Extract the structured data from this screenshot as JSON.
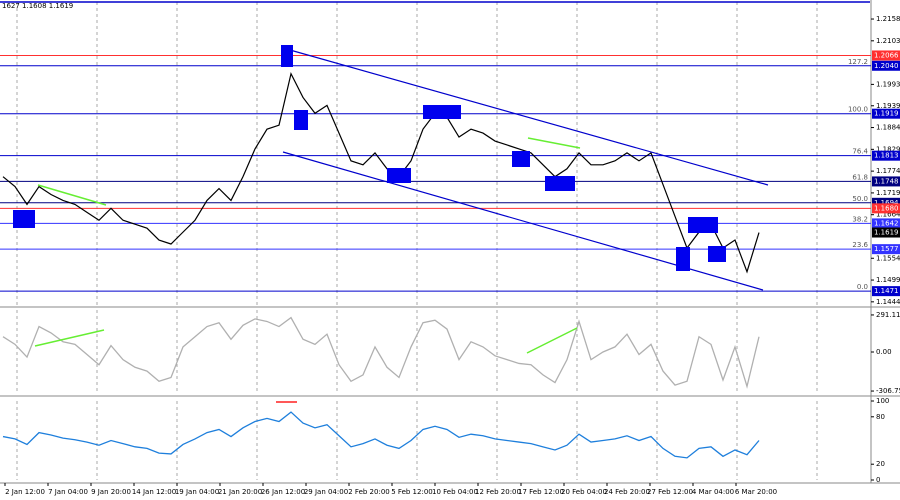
{
  "chart_data": [
    {
      "type": "line",
      "header": "1627 1.1608 1.1619",
      "color": "#000000",
      "values": [
        1.176,
        1.1735,
        1.169,
        1.1735,
        1.1715,
        1.17,
        1.169,
        1.167,
        1.165,
        1.168,
        1.165,
        1.164,
        1.163,
        1.16,
        1.159,
        1.162,
        1.165,
        1.17,
        1.173,
        1.17,
        1.176,
        1.183,
        1.188,
        1.189,
        1.202,
        1.196,
        1.192,
        1.194,
        1.187,
        1.18,
        1.179,
        1.182,
        1.178,
        1.176,
        1.18,
        1.188,
        1.192,
        1.191,
        1.186,
        1.188,
        1.187,
        1.185,
        1.184,
        1.183,
        1.182,
        1.179,
        1.176,
        1.178,
        1.182,
        1.179,
        1.179,
        1.18,
        1.182,
        1.18,
        1.182,
        1.174,
        1.166,
        1.158,
        1.162,
        1.164,
        1.158,
        1.16,
        1.152,
        1.1619
      ],
      "ylim": [
        1.1436,
        1.2201
      ],
      "yticks": [
        1.2158,
        1.2103,
        1.1993,
        1.1939,
        1.1884,
        1.1829,
        1.1774,
        1.1719,
        1.1664,
        1.1554,
        1.1499,
        1.1444
      ],
      "levels": [
        {
          "value": 1.2066,
          "color": "#ff3030"
        },
        {
          "value": 1.204,
          "label": "1.2040",
          "fib": "127.2",
          "color": "#0000cc"
        },
        {
          "value": 1.1919,
          "fib": "100.0",
          "color": "#0000cc"
        },
        {
          "value": 1.1813,
          "fib": "76.4",
          "color": "#0000cc"
        },
        {
          "value": 1.1748,
          "fib": "61.8",
          "color": "#000080"
        },
        {
          "value": 1.1694,
          "fib": "50.0",
          "color": "#000080"
        },
        {
          "value": 1.168,
          "label": "1.1680",
          "color": "#ff3030"
        },
        {
          "value": 1.1642,
          "fib": "38.2",
          "color": "#3333ff"
        },
        {
          "value": 1.1619,
          "color": "#000000"
        },
        {
          "value": 1.1577,
          "fib": "23.6",
          "color": "#3333ff"
        },
        {
          "value": 1.1471,
          "fib": "0.0",
          "color": "#0000cc"
        }
      ]
    },
    {
      "type": "line",
      "color": "#b0b0b0",
      "values": [
        120,
        60,
        -40,
        200,
        150,
        80,
        60,
        -20,
        -100,
        50,
        -60,
        -120,
        -150,
        -230,
        -200,
        40,
        120,
        200,
        230,
        100,
        210,
        260,
        240,
        200,
        270,
        100,
        60,
        140,
        -100,
        -230,
        -180,
        40,
        -120,
        -200,
        40,
        230,
        250,
        180,
        -60,
        80,
        40,
        -30,
        -60,
        -90,
        -100,
        -180,
        -240,
        -60,
        240,
        -60,
        0,
        40,
        140,
        -20,
        60,
        -150,
        -260,
        -230,
        120,
        60,
        -220,
        40,
        -270,
        120
      ],
      "ylim": [
        -330,
        330
      ],
      "yticks": [
        {
          "value": 291.1149,
          "label": "291.1149"
        },
        {
          "value": 0,
          "label": "0.00"
        },
        -306.75
      ]
    },
    {
      "type": "line",
      "color": "#1e7fdc",
      "values": [
        55,
        52,
        45,
        60,
        57,
        53,
        51,
        48,
        44,
        50,
        46,
        42,
        40,
        34,
        33,
        45,
        52,
        60,
        64,
        55,
        66,
        74,
        78,
        74,
        86,
        72,
        66,
        70,
        56,
        42,
        46,
        52,
        44,
        40,
        50,
        64,
        68,
        64,
        54,
        58,
        56,
        52,
        50,
        48,
        46,
        42,
        38,
        44,
        58,
        48,
        50,
        52,
        56,
        50,
        55,
        40,
        30,
        28,
        40,
        42,
        30,
        38,
        32,
        50
      ],
      "ylim": [
        0,
        100
      ],
      "yticks": [
        100,
        80,
        20,
        0
      ],
      "x_labels": [
        "2 Jan 12:00",
        "7 Jan 04:00",
        "9 Jan 20:00",
        "14 Jan 12:00",
        "19 Jan 04:00",
        "21 Jan 20:00",
        "26 Jan 12:00",
        "29 Jan 04:00",
        "2 Feb 20:00",
        "5 Feb 12:00",
        "10 Feb 04:00",
        "12 Feb 20:00",
        "17 Feb 12:00",
        "20 Feb 04:00",
        "24 Feb 20:00",
        "27 Feb 12:00",
        "4 Mar 04:00",
        "6 Mar 20:00"
      ]
    }
  ]
}
